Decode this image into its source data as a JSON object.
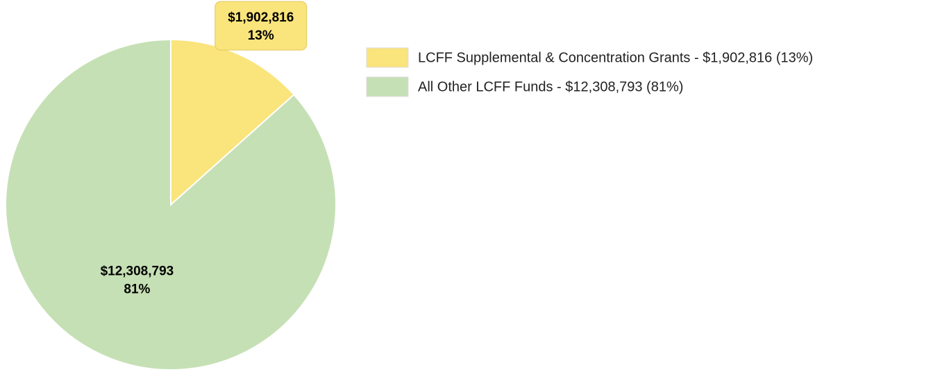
{
  "chart_data": {
    "type": "pie",
    "categories": [
      "LCFF Supplemental & Concentration Grants",
      "All Other LCFF Funds"
    ],
    "values": [
      1902816,
      12308793
    ],
    "value_labels": [
      "$1,902,816",
      "$12,308,793"
    ],
    "percent_labels": [
      "13%",
      "81%"
    ],
    "legend_labels": [
      "LCFF Supplemental & Concentration Grants - $1,902,816 (13%)",
      "All Other LCFF Funds - $12,308,793 (81%)"
    ],
    "colors": [
      "#fae47c",
      "#c6e0b5"
    ],
    "legend": "right"
  }
}
